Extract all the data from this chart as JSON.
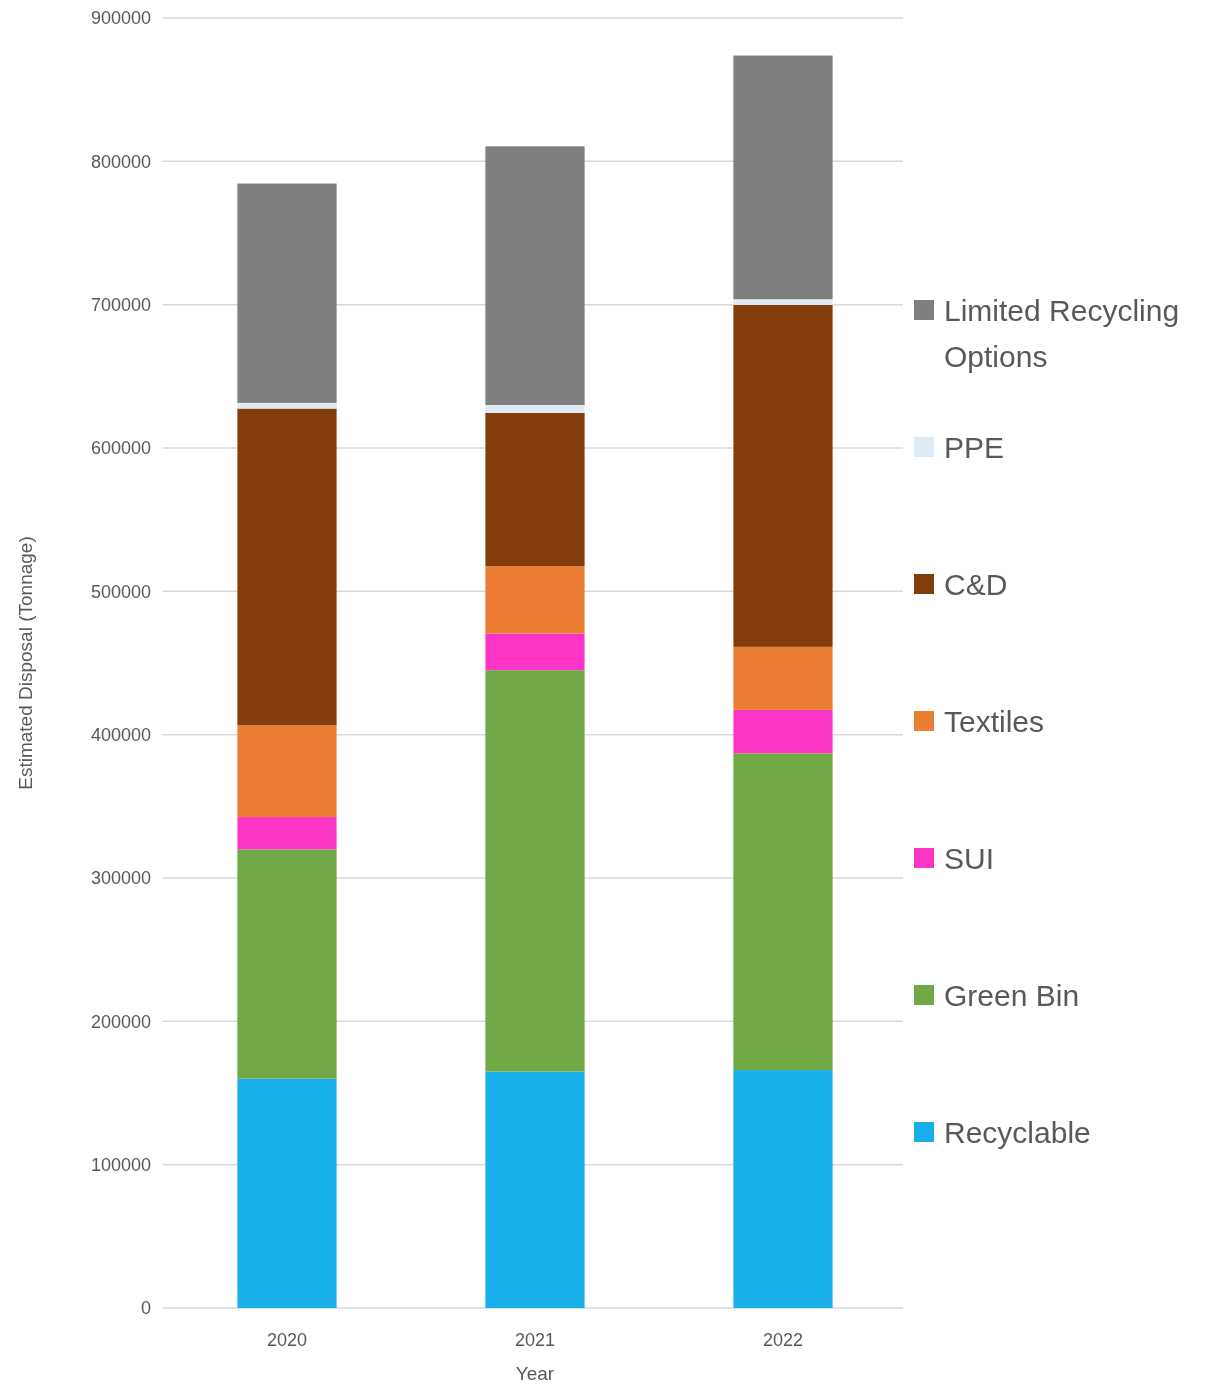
{
  "chart_data": {
    "type": "bar",
    "stacked": true,
    "xlabel": "Year",
    "ylabel": "Estimated Disposal (Tonnage)",
    "categories": [
      "2020",
      "2021",
      "2022"
    ],
    "series": [
      {
        "name": "Recyclable",
        "color": "#17aee9",
        "values": [
          160000,
          165000,
          166000
        ]
      },
      {
        "name": "Green Bin",
        "color": "#70a845",
        "values": [
          160000,
          280000,
          221000
        ]
      },
      {
        "name": "SUI",
        "color": "#fc35c6",
        "values": [
          22500,
          25500,
          30300
        ]
      },
      {
        "name": "Textiles",
        "color": "#eb7e32",
        "values": [
          64000,
          47000,
          44000
        ]
      },
      {
        "name": "C&D",
        "color": "#843c0b",
        "values": [
          221000,
          107000,
          238500
        ]
      },
      {
        "name": "PPE",
        "color": "#deebf7",
        "values": [
          4000,
          5500,
          4000
        ]
      },
      {
        "name": "Limited Recycling Options",
        "color": "#7f7f7f",
        "values": [
          153000,
          180500,
          170000
        ]
      }
    ],
    "ylim": [
      0,
      900000
    ],
    "yticks": [
      0,
      100000,
      200000,
      300000,
      400000,
      500000,
      600000,
      700000,
      800000,
      900000
    ],
    "grid": "y",
    "legend": "right"
  }
}
